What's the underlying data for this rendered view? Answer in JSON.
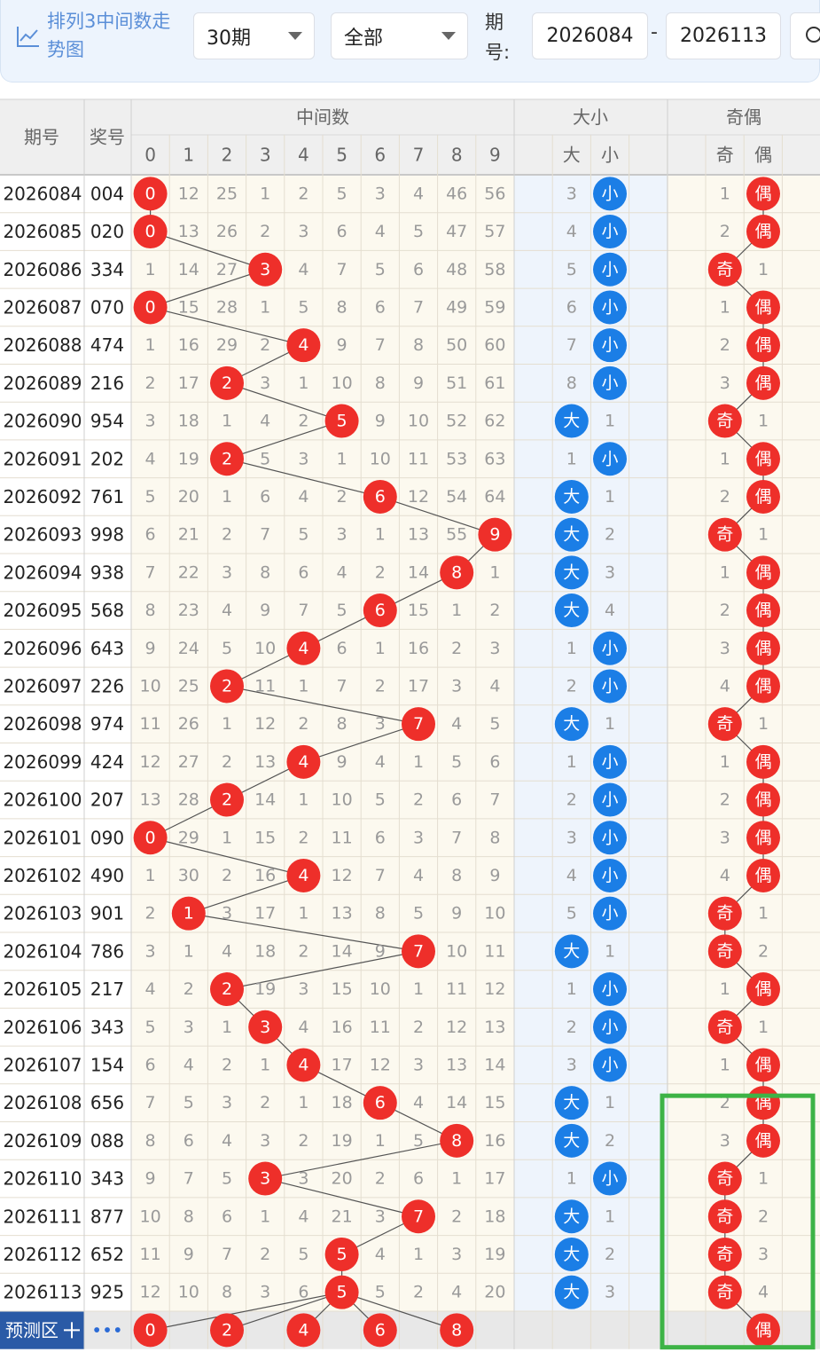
{
  "toolbar": {
    "title": "排列3中间数走势图",
    "period_select": "30期",
    "filter_select": "全部",
    "range_label": "期号:",
    "from": "2026084",
    "sep": "-",
    "to": "2026113"
  },
  "header": {
    "period": "期号",
    "number": "奖号",
    "mid": "中间数",
    "mid_cols": [
      "0",
      "1",
      "2",
      "3",
      "4",
      "5",
      "6",
      "7",
      "8",
      "9"
    ],
    "size": "大小",
    "size_cols": [
      "大",
      "小"
    ],
    "parity": "奇偶",
    "parity_cols": [
      "奇",
      "偶"
    ]
  },
  "rows": [
    {
      "period": "2026084",
      "number": "004",
      "mid": 0,
      "mid_miss": [
        null,
        12,
        25,
        1,
        2,
        5,
        3,
        4,
        46,
        56
      ],
      "size": "小",
      "size_miss": [
        3,
        null
      ],
      "parity": "偶",
      "parity_miss": [
        1,
        null
      ]
    },
    {
      "period": "2026085",
      "number": "020",
      "mid": 0,
      "mid_miss": [
        null,
        13,
        26,
        2,
        3,
        6,
        4,
        5,
        47,
        57
      ],
      "size": "小",
      "size_miss": [
        4,
        null
      ],
      "parity": "偶",
      "parity_miss": [
        2,
        null
      ]
    },
    {
      "period": "2026086",
      "number": "334",
      "mid": 3,
      "mid_miss": [
        1,
        14,
        27,
        null,
        4,
        7,
        5,
        6,
        48,
        58
      ],
      "size": "小",
      "size_miss": [
        5,
        null
      ],
      "parity": "奇",
      "parity_miss": [
        null,
        1
      ]
    },
    {
      "period": "2026087",
      "number": "070",
      "mid": 0,
      "mid_miss": [
        null,
        15,
        28,
        1,
        5,
        8,
        6,
        7,
        49,
        59
      ],
      "size": "小",
      "size_miss": [
        6,
        null
      ],
      "parity": "偶",
      "parity_miss": [
        1,
        null
      ]
    },
    {
      "period": "2026088",
      "number": "474",
      "mid": 4,
      "mid_miss": [
        1,
        16,
        29,
        2,
        null,
        9,
        7,
        8,
        50,
        60
      ],
      "size": "小",
      "size_miss": [
        7,
        null
      ],
      "parity": "偶",
      "parity_miss": [
        2,
        null
      ]
    },
    {
      "period": "2026089",
      "number": "216",
      "mid": 2,
      "mid_miss": [
        2,
        17,
        null,
        3,
        1,
        10,
        8,
        9,
        51,
        61
      ],
      "size": "小",
      "size_miss": [
        8,
        null
      ],
      "parity": "偶",
      "parity_miss": [
        3,
        null
      ]
    },
    {
      "period": "2026090",
      "number": "954",
      "mid": 5,
      "mid_miss": [
        3,
        18,
        1,
        4,
        2,
        null,
        9,
        10,
        52,
        62
      ],
      "size": "大",
      "size_miss": [
        null,
        1
      ],
      "parity": "奇",
      "parity_miss": [
        null,
        1
      ]
    },
    {
      "period": "2026091",
      "number": "202",
      "mid": 2,
      "mid_miss": [
        4,
        19,
        null,
        5,
        3,
        1,
        10,
        11,
        53,
        63
      ],
      "size": "小",
      "size_miss": [
        1,
        null
      ],
      "parity": "偶",
      "parity_miss": [
        1,
        null
      ]
    },
    {
      "period": "2026092",
      "number": "761",
      "mid": 6,
      "mid_miss": [
        5,
        20,
        1,
        6,
        4,
        2,
        null,
        12,
        54,
        64
      ],
      "size": "大",
      "size_miss": [
        null,
        1
      ],
      "parity": "偶",
      "parity_miss": [
        2,
        null
      ]
    },
    {
      "period": "2026093",
      "number": "998",
      "mid": 9,
      "mid_miss": [
        6,
        21,
        2,
        7,
        5,
        3,
        1,
        13,
        55,
        null
      ],
      "size": "大",
      "size_miss": [
        null,
        2
      ],
      "parity": "奇",
      "parity_miss": [
        null,
        1
      ]
    },
    {
      "period": "2026094",
      "number": "938",
      "mid": 8,
      "mid_miss": [
        7,
        22,
        3,
        8,
        6,
        4,
        2,
        14,
        null,
        1
      ],
      "size": "大",
      "size_miss": [
        null,
        3
      ],
      "parity": "偶",
      "parity_miss": [
        1,
        null
      ]
    },
    {
      "period": "2026095",
      "number": "568",
      "mid": 6,
      "mid_miss": [
        8,
        23,
        4,
        9,
        7,
        5,
        null,
        15,
        1,
        2
      ],
      "size": "大",
      "size_miss": [
        null,
        4
      ],
      "parity": "偶",
      "parity_miss": [
        2,
        null
      ]
    },
    {
      "period": "2026096",
      "number": "643",
      "mid": 4,
      "mid_miss": [
        9,
        24,
        5,
        10,
        null,
        6,
        1,
        16,
        2,
        3
      ],
      "size": "小",
      "size_miss": [
        1,
        null
      ],
      "parity": "偶",
      "parity_miss": [
        3,
        null
      ]
    },
    {
      "period": "2026097",
      "number": "226",
      "mid": 2,
      "mid_miss": [
        10,
        25,
        null,
        11,
        1,
        7,
        2,
        17,
        3,
        4
      ],
      "size": "小",
      "size_miss": [
        2,
        null
      ],
      "parity": "偶",
      "parity_miss": [
        4,
        null
      ]
    },
    {
      "period": "2026098",
      "number": "974",
      "mid": 7,
      "mid_miss": [
        11,
        26,
        1,
        12,
        2,
        8,
        3,
        null,
        4,
        5
      ],
      "size": "大",
      "size_miss": [
        null,
        1
      ],
      "parity": "奇",
      "parity_miss": [
        null,
        1
      ]
    },
    {
      "period": "2026099",
      "number": "424",
      "mid": 4,
      "mid_miss": [
        12,
        27,
        2,
        13,
        null,
        9,
        4,
        1,
        5,
        6
      ],
      "size": "小",
      "size_miss": [
        1,
        null
      ],
      "parity": "偶",
      "parity_miss": [
        1,
        null
      ]
    },
    {
      "period": "2026100",
      "number": "207",
      "mid": 2,
      "mid_miss": [
        13,
        28,
        null,
        14,
        1,
        10,
        5,
        2,
        6,
        7
      ],
      "size": "小",
      "size_miss": [
        2,
        null
      ],
      "parity": "偶",
      "parity_miss": [
        2,
        null
      ]
    },
    {
      "period": "2026101",
      "number": "090",
      "mid": 0,
      "mid_miss": [
        null,
        29,
        1,
        15,
        2,
        11,
        6,
        3,
        7,
        8
      ],
      "size": "小",
      "size_miss": [
        3,
        null
      ],
      "parity": "偶",
      "parity_miss": [
        3,
        null
      ]
    },
    {
      "period": "2026102",
      "number": "490",
      "mid": 4,
      "mid_miss": [
        1,
        30,
        2,
        16,
        null,
        12,
        7,
        4,
        8,
        9
      ],
      "size": "小",
      "size_miss": [
        4,
        null
      ],
      "parity": "偶",
      "parity_miss": [
        4,
        null
      ]
    },
    {
      "period": "2026103",
      "number": "901",
      "mid": 1,
      "mid_miss": [
        2,
        null,
        3,
        17,
        1,
        13,
        8,
        5,
        9,
        10
      ],
      "size": "小",
      "size_miss": [
        5,
        null
      ],
      "parity": "奇",
      "parity_miss": [
        null,
        1
      ]
    },
    {
      "period": "2026104",
      "number": "786",
      "mid": 7,
      "mid_miss": [
        3,
        1,
        4,
        18,
        2,
        14,
        9,
        null,
        10,
        11
      ],
      "size": "大",
      "size_miss": [
        null,
        1
      ],
      "parity": "奇",
      "parity_miss": [
        null,
        2
      ]
    },
    {
      "period": "2026105",
      "number": "217",
      "mid": 2,
      "mid_miss": [
        4,
        2,
        null,
        19,
        3,
        15,
        10,
        1,
        11,
        12
      ],
      "size": "小",
      "size_miss": [
        1,
        null
      ],
      "parity": "偶",
      "parity_miss": [
        1,
        null
      ]
    },
    {
      "period": "2026106",
      "number": "343",
      "mid": 3,
      "mid_miss": [
        5,
        3,
        1,
        null,
        4,
        16,
        11,
        2,
        12,
        13
      ],
      "size": "小",
      "size_miss": [
        2,
        null
      ],
      "parity": "奇",
      "parity_miss": [
        null,
        1
      ]
    },
    {
      "period": "2026107",
      "number": "154",
      "mid": 4,
      "mid_miss": [
        6,
        4,
        2,
        1,
        null,
        17,
        12,
        3,
        13,
        14
      ],
      "size": "小",
      "size_miss": [
        3,
        null
      ],
      "parity": "偶",
      "parity_miss": [
        1,
        null
      ]
    },
    {
      "period": "2026108",
      "number": "656",
      "mid": 6,
      "mid_miss": [
        7,
        5,
        3,
        2,
        1,
        18,
        null,
        4,
        14,
        15
      ],
      "size": "大",
      "size_miss": [
        null,
        1
      ],
      "parity": "偶",
      "parity_miss": [
        2,
        null
      ]
    },
    {
      "period": "2026109",
      "number": "088",
      "mid": 8,
      "mid_miss": [
        8,
        6,
        4,
        3,
        2,
        19,
        1,
        5,
        null,
        16
      ],
      "size": "大",
      "size_miss": [
        null,
        2
      ],
      "parity": "偶",
      "parity_miss": [
        3,
        null
      ]
    },
    {
      "period": "2026110",
      "number": "343",
      "mid": 3,
      "mid_miss": [
        9,
        7,
        5,
        null,
        3,
        20,
        2,
        6,
        1,
        17
      ],
      "size": "小",
      "size_miss": [
        1,
        null
      ],
      "parity": "奇",
      "parity_miss": [
        null,
        1
      ]
    },
    {
      "period": "2026111",
      "number": "877",
      "mid": 7,
      "mid_miss": [
        10,
        8,
        6,
        1,
        4,
        21,
        3,
        null,
        2,
        18
      ],
      "size": "大",
      "size_miss": [
        null,
        1
      ],
      "parity": "奇",
      "parity_miss": [
        null,
        2
      ]
    },
    {
      "period": "2026112",
      "number": "652",
      "mid": 5,
      "mid_miss": [
        11,
        9,
        7,
        2,
        5,
        null,
        4,
        1,
        3,
        19
      ],
      "size": "大",
      "size_miss": [
        null,
        2
      ],
      "parity": "奇",
      "parity_miss": [
        null,
        3
      ]
    },
    {
      "period": "2026113",
      "number": "925",
      "mid": 5,
      "mid_miss": [
        12,
        10,
        8,
        3,
        6,
        null,
        5,
        2,
        4,
        20
      ],
      "size": "大",
      "size_miss": [
        null,
        3
      ],
      "parity": "奇",
      "parity_miss": [
        null,
        4
      ]
    }
  ],
  "prediction": {
    "label": "预测区",
    "more": "•••",
    "mid": [
      0,
      2,
      4,
      6,
      8
    ],
    "parity": "偶"
  }
}
